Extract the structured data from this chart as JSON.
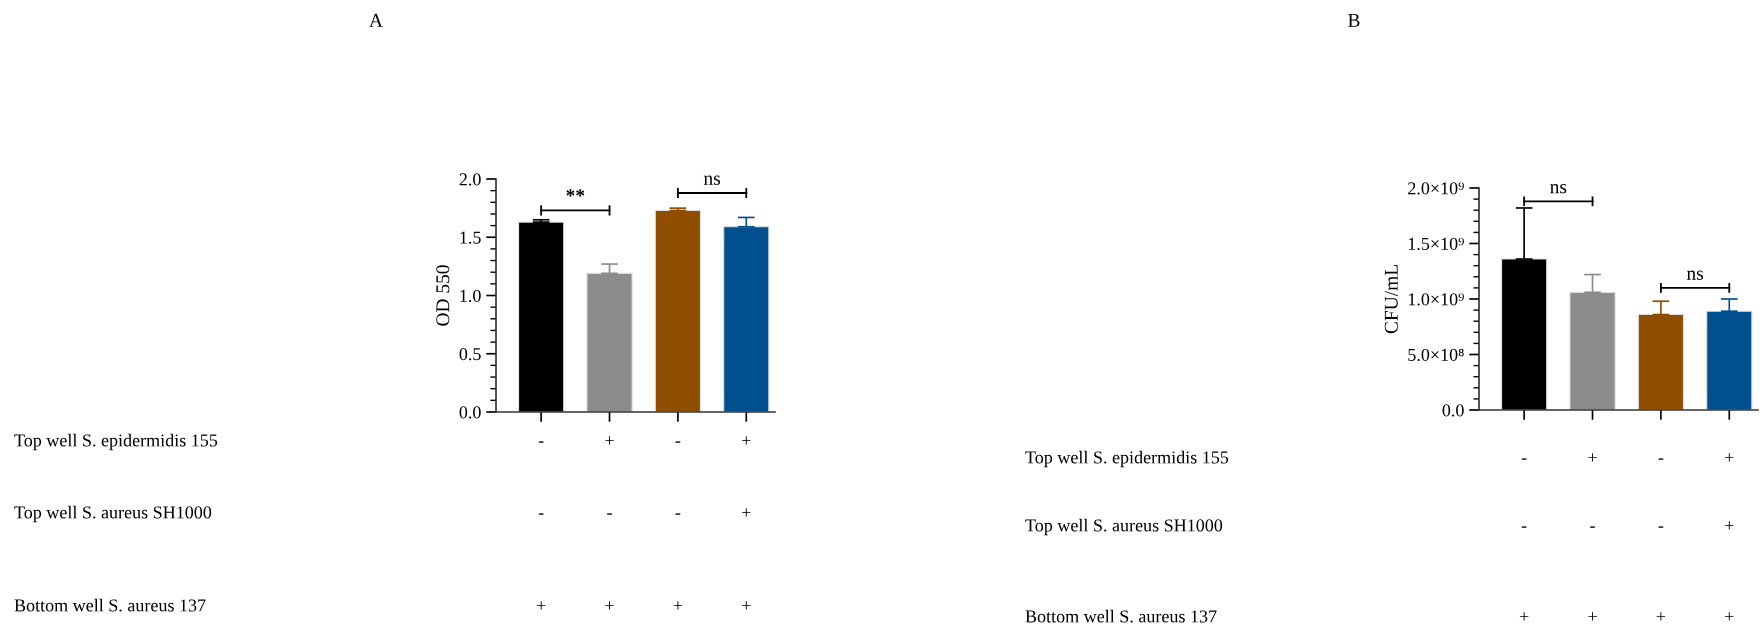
{
  "chart_data": [
    {
      "type": "bar",
      "title": "A",
      "ylabel": "OD 550",
      "categories": [
        "-\n-\n+",
        "+\n-\n+",
        "-\n-\n+",
        "+\n+\n+"
      ],
      "values": [
        1.63,
        1.19,
        1.73,
        1.59
      ],
      "colors": [
        "#000000",
        "#8c8c8c",
        "#8f4d00",
        "#00508f"
      ],
      "errors": [
        0.02,
        0.08,
        0.02,
        0.08
      ],
      "ylim": [
        0,
        2.0
      ],
      "yticks": [
        {
          "value": 0,
          "label": "0.0"
        },
        0.5,
        {
          "value": 1,
          "label": "1.0"
        },
        1.5,
        {
          "value": 2,
          "label": "2.0"
        }
      ],
      "annotations": [
        "Top well S. epidermidis 155",
        "Top well S. aureus SH1000",
        "Bottom well S. aureus 137",
        "**",
        "ns"
      ]
    },
    {
      "type": "bar",
      "title": "B",
      "ylabel": "CFU/mL",
      "categories": [
        "-\n-\n+",
        "+\n-\n+",
        "-\n-\n+",
        "+\n+\n+"
      ],
      "values": [
        1360000000.0,
        1060000000.0,
        860000000.0,
        890000000.0
      ],
      "colors": [
        "#000000",
        "#8c8c8c",
        "#8f4d00",
        "#00508f"
      ],
      "errors": [
        460000000.0,
        160000000.0,
        120000000.0,
        110000000.0
      ],
      "ylim": [
        0,
        2000000000.0
      ],
      "yticks": [
        {
          "value": 0,
          "label": "0.0"
        },
        {
          "value": 500000000.0,
          "label": "5.0×10⁸"
        },
        {
          "value": 1000000000.0,
          "label": "1.0×10⁹"
        },
        {
          "value": 1500000000.0,
          "label": "1.5×10⁹"
        },
        {
          "value": 2000000000.0,
          "label": "2.0×10⁹"
        }
      ],
      "annotations": [
        "Top well S. epidermidis 155",
        "Top well S. aureus SH1000",
        "Bottom well S. aureus 137",
        "ns",
        "ns"
      ]
    }
  ]
}
